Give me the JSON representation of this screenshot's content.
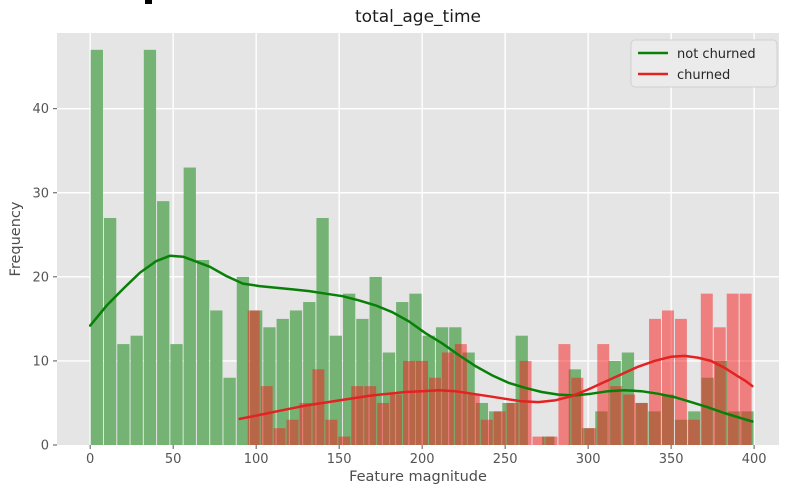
{
  "title": "total_age_time",
  "axes": {
    "xlabel": "Feature magnitude",
    "ylabel": "Frequency",
    "x_ticks": [
      0,
      50,
      100,
      150,
      200,
      250,
      300,
      350,
      400
    ],
    "y_ticks": [
      0,
      10,
      20,
      30,
      40
    ],
    "xlim": [
      -20,
      415
    ],
    "ylim": [
      0,
      49
    ]
  },
  "legend": {
    "items": [
      {
        "label": "not churned",
        "color": "#088008"
      },
      {
        "label": "churned",
        "color": "#e32222"
      }
    ]
  },
  "colors": {
    "figure_bg": "#ffffff",
    "plot_bg": "#e5e5e5",
    "grid": "#ffffff",
    "bar_not_churned": "#74b374",
    "bar_churned_overlay": "rgba(250,25,25,0.5)",
    "kde_not_churned": "#088008",
    "kde_churned": "#e32222",
    "tick_label": "#555555",
    "axis_label": "#4d4d4d",
    "title_color": "#1c1c1c",
    "legend_bg": "#ebebeb",
    "legend_border": "#d0d0d0",
    "artifact_mark": "#000000"
  },
  "chart_data": {
    "type": "bar",
    "subtype": "overlaid-histograms-with-kde",
    "title": "total_age_time",
    "xlabel": "Feature magnitude",
    "ylabel": "Frequency",
    "xlim": [
      -20,
      415
    ],
    "ylim": [
      0,
      49
    ],
    "grid": true,
    "legend_position": "upper right",
    "series": [
      {
        "name": "not churned",
        "kind": "histogram",
        "bin_start": 0,
        "bin_width": 8,
        "counts": [
          47,
          27,
          12,
          13,
          47,
          29,
          12,
          33,
          22,
          16,
          8,
          20,
          16,
          14,
          15,
          16,
          17,
          27,
          13,
          18,
          15,
          20,
          11,
          17,
          18,
          13,
          14,
          14,
          11,
          5,
          4,
          5,
          13,
          0,
          1,
          0,
          9,
          2,
          4,
          10,
          11,
          5,
          4,
          6,
          3,
          4,
          8,
          10,
          4,
          4
        ]
      },
      {
        "name": "churned",
        "kind": "histogram",
        "bin_start": 94.6,
        "bin_width": 7.8,
        "counts": [
          16,
          7,
          2,
          3,
          5,
          9,
          3,
          1,
          7,
          7,
          5,
          6,
          10,
          10,
          8,
          11,
          12,
          6,
          3,
          4,
          5,
          10,
          1,
          1,
          12,
          8,
          2,
          12,
          7,
          6,
          5,
          15,
          16,
          15,
          3,
          18,
          14,
          18,
          18
        ]
      },
      {
        "name": "not churned (kde)",
        "kind": "line",
        "points": [
          [
            0,
            14.2
          ],
          [
            10,
            16.6
          ],
          [
            20,
            18.6
          ],
          [
            30,
            20.5
          ],
          [
            40,
            21.9
          ],
          [
            48,
            22.5
          ],
          [
            56,
            22.4
          ],
          [
            64,
            21.8
          ],
          [
            72,
            21.2
          ],
          [
            82,
            20.1
          ],
          [
            92,
            19.2
          ],
          [
            102,
            18.9
          ],
          [
            112,
            18.7
          ],
          [
            122,
            18.5
          ],
          [
            132,
            18.3
          ],
          [
            142,
            18.0
          ],
          [
            152,
            17.7
          ],
          [
            162,
            17.2
          ],
          [
            172,
            16.6
          ],
          [
            182,
            15.8
          ],
          [
            192,
            14.7
          ],
          [
            202,
            13.3
          ],
          [
            212,
            12.1
          ],
          [
            222,
            10.7
          ],
          [
            232,
            9.4
          ],
          [
            242,
            8.3
          ],
          [
            252,
            7.4
          ],
          [
            262,
            6.8
          ],
          [
            272,
            6.3
          ],
          [
            282,
            6.0
          ],
          [
            292,
            5.9
          ],
          [
            302,
            6.1
          ],
          [
            312,
            6.4
          ],
          [
            322,
            6.5
          ],
          [
            332,
            6.4
          ],
          [
            342,
            6.1
          ],
          [
            352,
            5.7
          ],
          [
            362,
            5.1
          ],
          [
            372,
            4.5
          ],
          [
            382,
            3.8
          ],
          [
            392,
            3.2
          ],
          [
            399,
            2.8
          ]
        ]
      },
      {
        "name": "churned (kde)",
        "kind": "line",
        "points": [
          [
            90,
            3.1
          ],
          [
            100,
            3.5
          ],
          [
            110,
            3.9
          ],
          [
            120,
            4.3
          ],
          [
            130,
            4.7
          ],
          [
            140,
            5.0
          ],
          [
            150,
            5.3
          ],
          [
            160,
            5.6
          ],
          [
            170,
            5.9
          ],
          [
            180,
            6.1
          ],
          [
            190,
            6.3
          ],
          [
            200,
            6.4
          ],
          [
            210,
            6.5
          ],
          [
            220,
            6.4
          ],
          [
            230,
            6.1
          ],
          [
            240,
            5.8
          ],
          [
            250,
            5.5
          ],
          [
            260,
            5.2
          ],
          [
            270,
            5.1
          ],
          [
            280,
            5.3
          ],
          [
            290,
            5.8
          ],
          [
            300,
            6.6
          ],
          [
            310,
            7.5
          ],
          [
            320,
            8.4
          ],
          [
            330,
            9.3
          ],
          [
            340,
            10.0
          ],
          [
            350,
            10.5
          ],
          [
            358,
            10.6
          ],
          [
            366,
            10.4
          ],
          [
            374,
            10.0
          ],
          [
            382,
            9.2
          ],
          [
            390,
            8.2
          ],
          [
            395,
            7.6
          ],
          [
            399,
            7.0
          ]
        ]
      }
    ]
  }
}
